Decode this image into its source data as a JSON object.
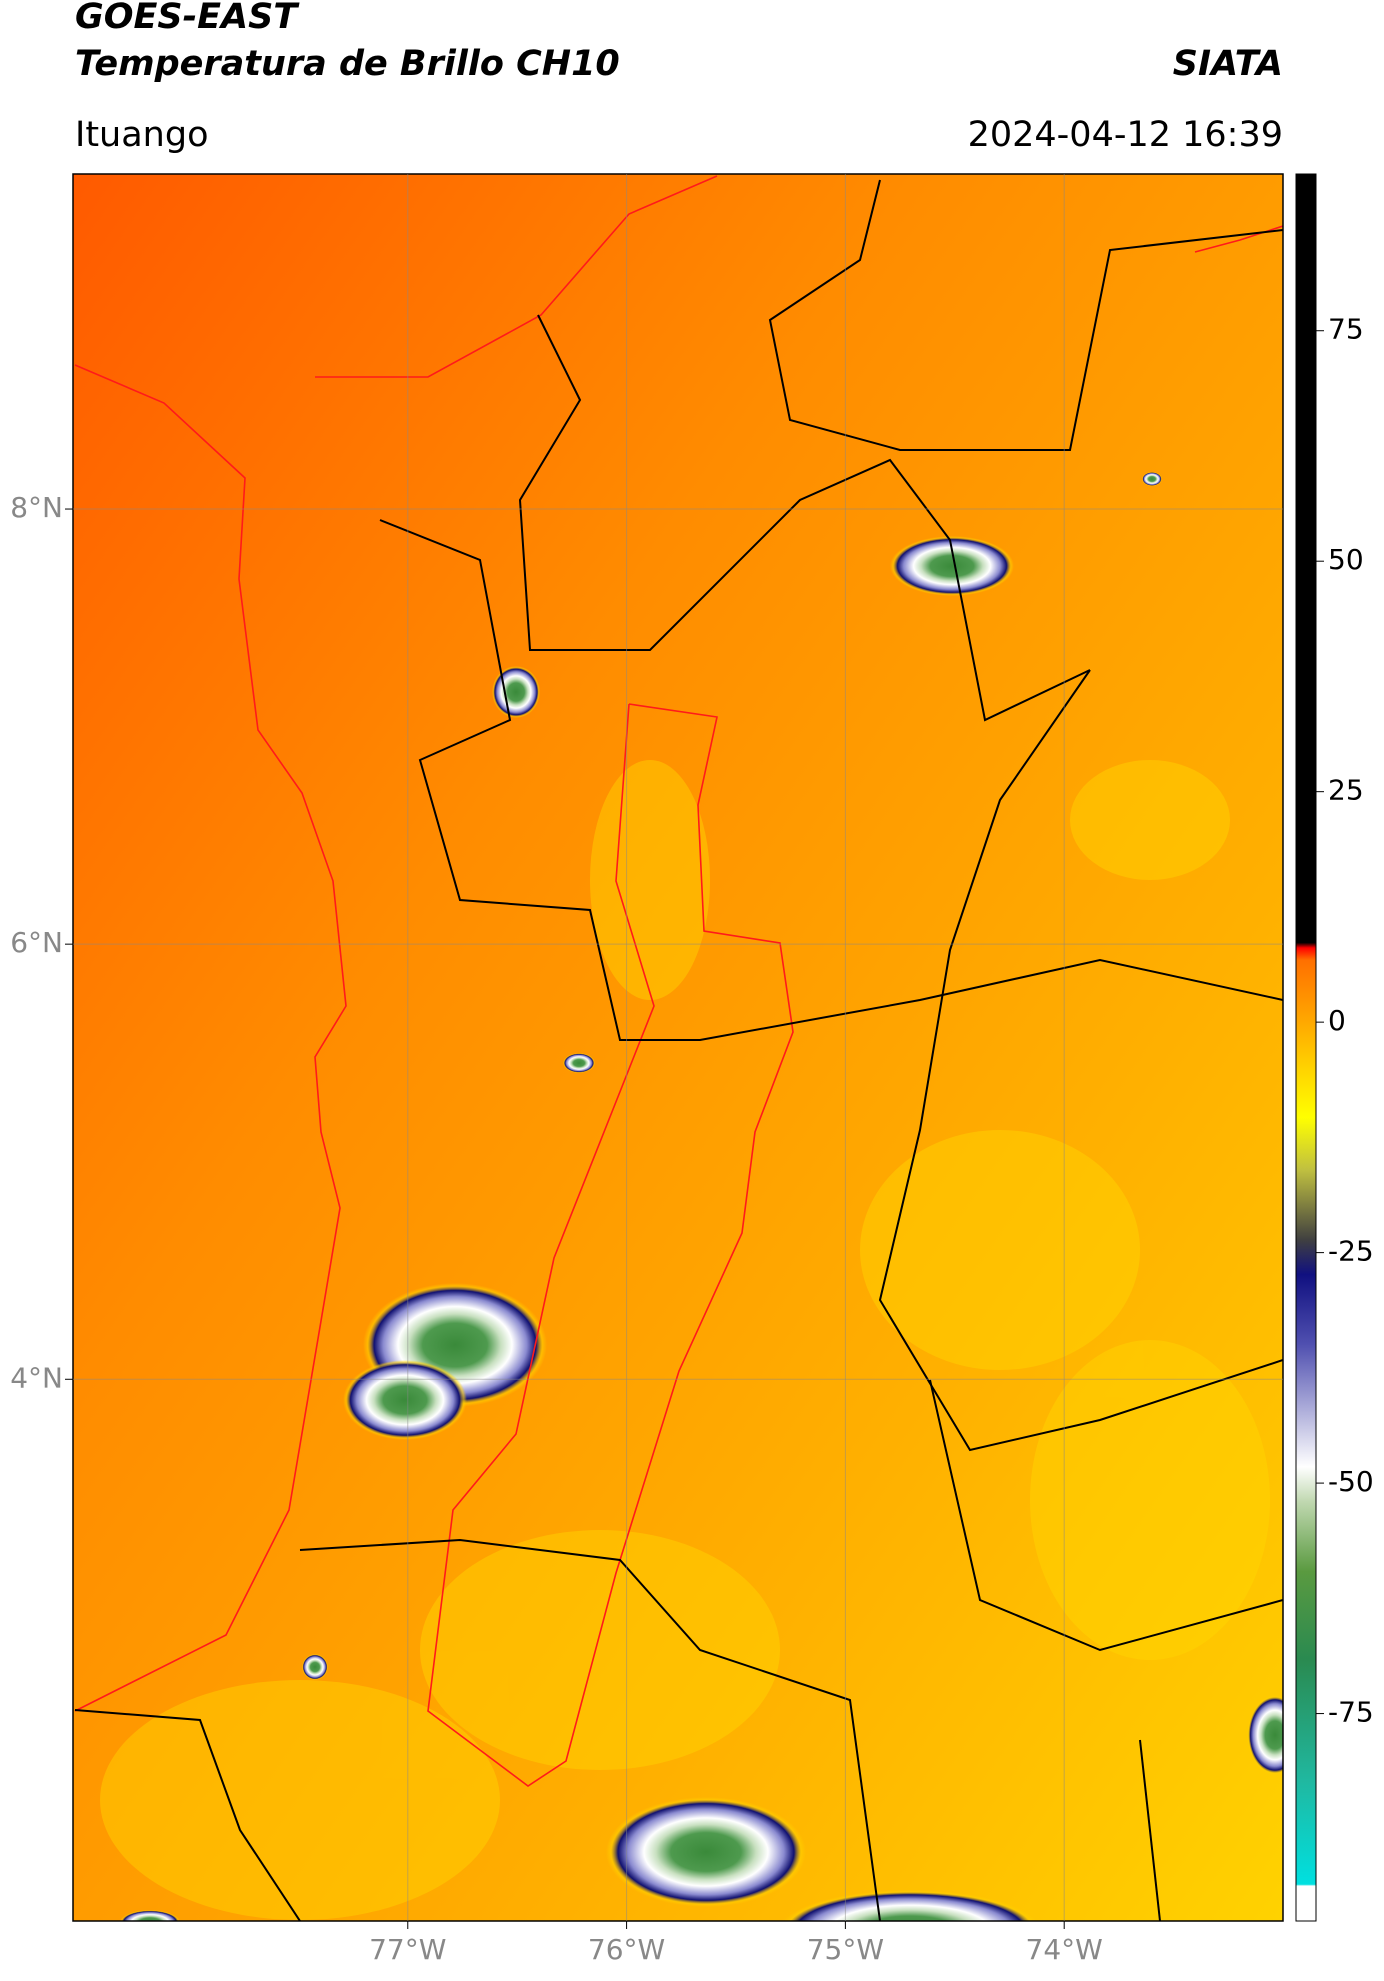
{
  "header": {
    "title": "GOES-EAST",
    "subtitle": "Temperatura de Brillo CH10",
    "source": "SIATA",
    "location": "Ituango",
    "datetime": "2024-04-12 16:39"
  },
  "chart_data": {
    "type": "map",
    "xlim": [
      -78.53,
      -73.0
    ],
    "ylim": [
      1.51,
      9.54
    ],
    "xticks": [
      {
        "value": -77,
        "label": "77°W"
      },
      {
        "value": -76,
        "label": "76°W"
      },
      {
        "value": -75,
        "label": "75°W"
      },
      {
        "value": -74,
        "label": "74°W"
      }
    ],
    "yticks": [
      {
        "value": 4,
        "label": "4°N"
      },
      {
        "value": 6,
        "label": "6°N"
      },
      {
        "value": 8,
        "label": "8°N"
      }
    ],
    "grid": true,
    "colorbar": {
      "lim": [
        -97.5,
        92
      ],
      "ticks": [
        -75,
        -50,
        -25,
        0,
        25,
        50,
        75
      ]
    }
  }
}
